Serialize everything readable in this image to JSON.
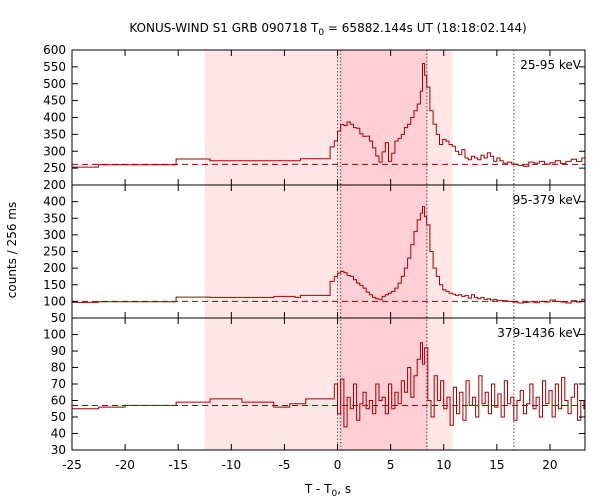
{
  "chart_data": {
    "type": "line",
    "title": "KONUS-WIND S1 GRB 090718 T",
    "title_sub": "0",
    "title_rest": " = 65882.144s UT (18:18:02.144)",
    "ylabel": "counts / 256 ms",
    "xlabel_main": "T - T",
    "xlabel_sub": "0",
    "xlabel_tail": ", s",
    "xlim": [
      -25,
      23.3
    ],
    "xticks": [
      -25,
      -20,
      -15,
      -10,
      -5,
      0,
      5,
      10,
      15,
      20
    ],
    "colors": {
      "line": "#a00000",
      "shade_light": "#ffe6e6",
      "shade_dark": "#ffcfd6",
      "marker": "#555555"
    },
    "shaded_intervals": [
      {
        "x0": -12.5,
        "x1": 10.8,
        "level": "light"
      },
      {
        "x0": 0.1,
        "x1": 8.5,
        "level": "dark"
      }
    ],
    "vertical_markers": [
      0,
      0.3,
      8.4,
      16.6
    ],
    "panels": [
      {
        "label": "25-95 keV",
        "ylim": [
          200,
          600
        ],
        "yticks": [
          200,
          250,
          300,
          350,
          400,
          450,
          500,
          550,
          600
        ],
        "background": 261,
        "steps": [
          [
            -25,
            253
          ],
          [
            -22.5,
            260
          ],
          [
            -15.2,
            277
          ],
          [
            -12,
            272
          ],
          [
            -6,
            272
          ],
          [
            -4,
            272
          ],
          [
            -3.5,
            278
          ],
          [
            -0.7,
            313
          ],
          [
            -0.3,
            331
          ],
          [
            0,
            360
          ],
          [
            0.3,
            379
          ],
          [
            0.6,
            376
          ],
          [
            0.9,
            387
          ],
          [
            1.2,
            380
          ],
          [
            1.5,
            370
          ],
          [
            1.8,
            368
          ],
          [
            2.1,
            352
          ],
          [
            2.4,
            344
          ],
          [
            2.7,
            345
          ],
          [
            3.0,
            330
          ],
          [
            3.3,
            310
          ],
          [
            3.6,
            286
          ],
          [
            3.9,
            268
          ],
          [
            4.2,
            298
          ],
          [
            4.5,
            325
          ],
          [
            4.8,
            270
          ],
          [
            5.1,
            294
          ],
          [
            5.4,
            330
          ],
          [
            5.7,
            338
          ],
          [
            6.0,
            350
          ],
          [
            6.3,
            370
          ],
          [
            6.6,
            380
          ],
          [
            6.9,
            400
          ],
          [
            7.2,
            420
          ],
          [
            7.5,
            440
          ],
          [
            7.8,
            478
          ],
          [
            8.0,
            560
          ],
          [
            8.2,
            525
          ],
          [
            8.4,
            490
          ],
          [
            8.7,
            420
          ],
          [
            9.0,
            380
          ],
          [
            9.3,
            350
          ],
          [
            9.6,
            320
          ],
          [
            9.9,
            335
          ],
          [
            10.2,
            330
          ],
          [
            10.5,
            320
          ],
          [
            10.8,
            315
          ],
          [
            11.1,
            300
          ],
          [
            11.4,
            290
          ],
          [
            11.7,
            305
          ],
          [
            12.0,
            280
          ],
          [
            12.3,
            275
          ],
          [
            12.6,
            285
          ],
          [
            12.9,
            280
          ],
          [
            13.2,
            275
          ],
          [
            13.5,
            288
          ],
          [
            13.8,
            280
          ],
          [
            14.1,
            295
          ],
          [
            14.4,
            285
          ],
          [
            14.7,
            270
          ],
          [
            15.0,
            280
          ],
          [
            15.3,
            272
          ],
          [
            15.6,
            265
          ],
          [
            16.0,
            268
          ],
          [
            16.4,
            262
          ],
          [
            17.0,
            258
          ],
          [
            17.5,
            255
          ],
          [
            18.0,
            268
          ],
          [
            18.5,
            265
          ],
          [
            19.0,
            270
          ],
          [
            19.5,
            262
          ],
          [
            20.0,
            266
          ],
          [
            20.5,
            272
          ],
          [
            21.0,
            264
          ],
          [
            21.5,
            270
          ],
          [
            22.0,
            276
          ],
          [
            22.5,
            270
          ],
          [
            23.0,
            280
          ]
        ]
      },
      {
        "label": "95-379 keV",
        "ylim": [
          50,
          450
        ],
        "yticks": [
          50,
          100,
          150,
          200,
          250,
          300,
          350,
          400,
          450
        ],
        "background": 100,
        "steps": [
          [
            -25,
            97
          ],
          [
            -22.5,
            99
          ],
          [
            -15.2,
            113
          ],
          [
            -12,
            112
          ],
          [
            -6,
            115
          ],
          [
            -4,
            112
          ],
          [
            -3.5,
            118
          ],
          [
            -0.7,
            160
          ],
          [
            -0.3,
            175
          ],
          [
            0,
            185
          ],
          [
            0.3,
            190
          ],
          [
            0.6,
            186
          ],
          [
            0.9,
            178
          ],
          [
            1.2,
            175
          ],
          [
            1.5,
            165
          ],
          [
            1.8,
            155
          ],
          [
            2.1,
            148
          ],
          [
            2.4,
            140
          ],
          [
            2.7,
            128
          ],
          [
            3.0,
            120
          ],
          [
            3.3,
            112
          ],
          [
            3.6,
            108
          ],
          [
            3.9,
            105
          ],
          [
            4.2,
            115
          ],
          [
            4.5,
            120
          ],
          [
            4.8,
            125
          ],
          [
            5.1,
            130
          ],
          [
            5.4,
            140
          ],
          [
            5.7,
            155
          ],
          [
            6.0,
            175
          ],
          [
            6.3,
            200
          ],
          [
            6.6,
            230
          ],
          [
            6.9,
            270
          ],
          [
            7.2,
            310
          ],
          [
            7.5,
            345
          ],
          [
            7.8,
            365
          ],
          [
            8.0,
            385
          ],
          [
            8.2,
            355
          ],
          [
            8.4,
            330
          ],
          [
            8.7,
            250
          ],
          [
            9.0,
            200
          ],
          [
            9.3,
            175
          ],
          [
            9.6,
            150
          ],
          [
            9.9,
            135
          ],
          [
            10.2,
            130
          ],
          [
            10.5,
            125
          ],
          [
            10.8,
            122
          ],
          [
            11.1,
            118
          ],
          [
            11.4,
            120
          ],
          [
            11.7,
            115
          ],
          [
            12.0,
            118
          ],
          [
            12.3,
            110
          ],
          [
            12.6,
            120
          ],
          [
            12.9,
            112
          ],
          [
            13.2,
            108
          ],
          [
            13.5,
            112
          ],
          [
            13.8,
            106
          ],
          [
            14.1,
            108
          ],
          [
            14.4,
            104
          ],
          [
            14.7,
            106
          ],
          [
            15.0,
            103
          ],
          [
            15.5,
            102
          ],
          [
            16.0,
            100
          ],
          [
            16.5,
            98
          ],
          [
            17.0,
            95
          ],
          [
            17.5,
            97
          ],
          [
            18.0,
            99
          ],
          [
            18.5,
            96
          ],
          [
            19.0,
            100
          ],
          [
            19.5,
            98
          ],
          [
            20.0,
            104
          ],
          [
            20.5,
            100
          ],
          [
            21.0,
            98
          ],
          [
            21.5,
            95
          ],
          [
            22.0,
            102
          ],
          [
            22.5,
            98
          ],
          [
            23.0,
            106
          ]
        ]
      },
      {
        "label": "379-1436 keV",
        "ylim": [
          30,
          110
        ],
        "yticks": [
          30,
          40,
          50,
          60,
          70,
          80,
          90,
          100
        ],
        "background": 57,
        "steps": [
          [
            -25,
            55
          ],
          [
            -22.5,
            56
          ],
          [
            -20,
            57
          ],
          [
            -15.2,
            59
          ],
          [
            -12,
            61
          ],
          [
            -9,
            59
          ],
          [
            -6,
            56
          ],
          [
            -4.5,
            58
          ],
          [
            -3,
            61
          ],
          [
            -0.3,
            70
          ],
          [
            0,
            52
          ],
          [
            0.3,
            73
          ],
          [
            0.6,
            44
          ],
          [
            0.9,
            62
          ],
          [
            1.2,
            55
          ],
          [
            1.5,
            70
          ],
          [
            1.8,
            48
          ],
          [
            2.1,
            58
          ],
          [
            2.4,
            65
          ],
          [
            2.7,
            55
          ],
          [
            3.0,
            60
          ],
          [
            3.3,
            52
          ],
          [
            3.6,
            70
          ],
          [
            3.9,
            60
          ],
          [
            4.2,
            62
          ],
          [
            4.5,
            52
          ],
          [
            4.8,
            70
          ],
          [
            5.1,
            55
          ],
          [
            5.4,
            65
          ],
          [
            5.7,
            58
          ],
          [
            6.0,
            72
          ],
          [
            6.3,
            65
          ],
          [
            6.6,
            80
          ],
          [
            6.9,
            62
          ],
          [
            7.2,
            75
          ],
          [
            7.5,
            85
          ],
          [
            7.8,
            95
          ],
          [
            8.0,
            82
          ],
          [
            8.2,
            92
          ],
          [
            8.5,
            60
          ],
          [
            8.8,
            50
          ],
          [
            9.1,
            75
          ],
          [
            9.4,
            60
          ],
          [
            9.7,
            72
          ],
          [
            10.0,
            55
          ],
          [
            10.3,
            62
          ],
          [
            10.6,
            45
          ],
          [
            10.9,
            68
          ],
          [
            11.2,
            52
          ],
          [
            11.5,
            65
          ],
          [
            11.8,
            48
          ],
          [
            12.1,
            72
          ],
          [
            12.4,
            57
          ],
          [
            12.7,
            62
          ],
          [
            13.0,
            50
          ],
          [
            13.3,
            75
          ],
          [
            13.6,
            58
          ],
          [
            13.9,
            65
          ],
          [
            14.2,
            52
          ],
          [
            14.5,
            70
          ],
          [
            14.8,
            56
          ],
          [
            15.1,
            64
          ],
          [
            15.4,
            50
          ],
          [
            15.7,
            72
          ],
          [
            16.0,
            58
          ],
          [
            16.3,
            62
          ],
          [
            16.6,
            48
          ],
          [
            16.9,
            60
          ],
          [
            17.2,
            66
          ],
          [
            17.5,
            52
          ],
          [
            17.8,
            58
          ],
          [
            18.1,
            70
          ],
          [
            18.4,
            55
          ],
          [
            18.7,
            62
          ],
          [
            19.0,
            50
          ],
          [
            19.3,
            72
          ],
          [
            19.6,
            58
          ],
          [
            19.9,
            66
          ],
          [
            20.2,
            50
          ],
          [
            20.5,
            70
          ],
          [
            20.8,
            55
          ],
          [
            21.1,
            74
          ],
          [
            21.4,
            60
          ],
          [
            21.7,
            52
          ],
          [
            22.0,
            62
          ],
          [
            22.3,
            70
          ],
          [
            22.6,
            48
          ],
          [
            22.9,
            60
          ],
          [
            23.2,
            55
          ]
        ]
      }
    ]
  }
}
